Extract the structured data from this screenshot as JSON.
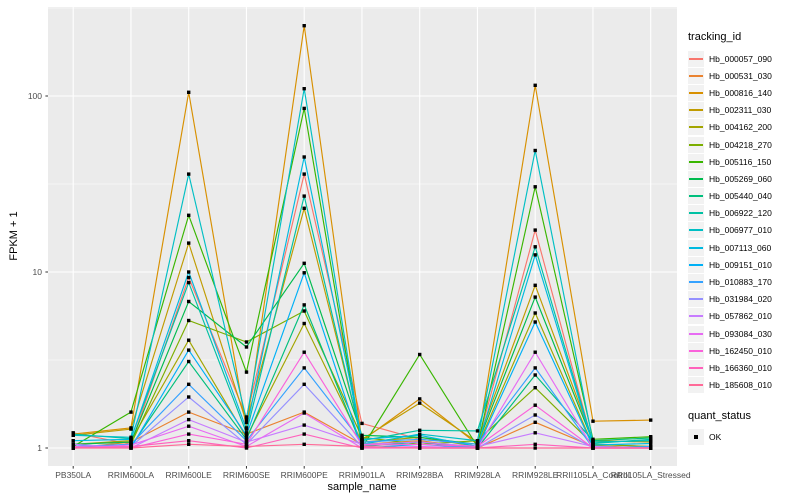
{
  "legend": {
    "tracking_title": "tracking_id",
    "quant_title": "quant_status",
    "quant_label": "OK"
  },
  "chart_data": {
    "type": "line",
    "title": "",
    "xlabel": "sample_name",
    "ylabel": "FPKM + 1",
    "y_scale": "log10",
    "ylim": [
      0.79,
      316
    ],
    "y_ticks": [
      1,
      10,
      100
    ],
    "y_minor": [
      3.162,
      31.62,
      316.2
    ],
    "grid": "on",
    "legend_position": "right",
    "panel_bg": "#EBEBEB",
    "grid_color": "#FFFFFF",
    "tick_label_color": "#4D4D4D",
    "point_color": "#000000",
    "categories": [
      "PB350LA",
      "RRIM600LA",
      "RRIM600LE",
      "RRIM600SE",
      "RRIM600PE",
      "RRIM901LA",
      "RRIM928BA",
      "RRIM928LA",
      "RRIM928LE",
      "RRII105LA_Control",
      "RRII105LA_Stressed"
    ],
    "series": [
      {
        "name": "Hb_000057_090",
        "color": "#F8766D",
        "values": [
          1.22,
          1.05,
          9.3,
          1.5,
          36,
          1.38,
          1.12,
          1.05,
          17.3,
          1.05,
          1.02
        ]
      },
      {
        "name": "Hb_000531_030",
        "color": "#EA8331",
        "values": [
          1.0,
          1.08,
          1.6,
          1.2,
          1.6,
          1.05,
          1.1,
          1.0,
          1.4,
          1.02,
          1.0
        ]
      },
      {
        "name": "Hb_000816_140",
        "color": "#D89000",
        "values": [
          1.2,
          1.3,
          105,
          1.3,
          251,
          1.1,
          1.9,
          1.05,
          115,
          1.42,
          1.44
        ]
      },
      {
        "name": "Hb_002311_030",
        "color": "#C09B00",
        "values": [
          1.18,
          1.28,
          14.6,
          1.4,
          23,
          1.12,
          1.8,
          1.08,
          8.4,
          1.1,
          1.08
        ]
      },
      {
        "name": "Hb_004162_200",
        "color": "#A3A500",
        "values": [
          1.05,
          1.1,
          4.1,
          1.15,
          5.1,
          1.08,
          1.15,
          1.02,
          5.85,
          1.03,
          1.0
        ]
      },
      {
        "name": "Hb_004218_270",
        "color": "#7CAE00",
        "values": [
          1.0,
          1.05,
          5.3,
          4.0,
          6.0,
          1.15,
          1.05,
          1.1,
          2.2,
          1.05,
          1.02
        ]
      },
      {
        "name": "Hb_005116_150",
        "color": "#39B600",
        "values": [
          1.02,
          1.6,
          21,
          2.7,
          85,
          1.0,
          3.4,
          1.02,
          30.5,
          1.12,
          1.16
        ]
      },
      {
        "name": "Hb_005269_060",
        "color": "#00BB4E",
        "values": [
          1.05,
          1.08,
          6.8,
          3.75,
          11.2,
          1.18,
          1.15,
          1.05,
          7.2,
          1.08,
          1.1
        ]
      },
      {
        "name": "Hb_005440_040",
        "color": "#00BF7D",
        "values": [
          1.0,
          1.02,
          3.1,
          1.12,
          6.5,
          1.02,
          1.08,
          1.0,
          2.6,
          1.1,
          1.14
        ]
      },
      {
        "name": "Hb_006922_120",
        "color": "#00C1A3",
        "values": [
          1.2,
          1.13,
          8.7,
          1.22,
          27,
          1.1,
          1.26,
          1.25,
          13.9,
          1.06,
          1.12
        ]
      },
      {
        "name": "Hb_006977_010",
        "color": "#00BFC4",
        "values": [
          1.18,
          1.15,
          36,
          1.45,
          110,
          1.05,
          1.2,
          1.1,
          49,
          1.08,
          1.1
        ]
      },
      {
        "name": "Hb_007113_060",
        "color": "#00BAE0",
        "values": [
          1.1,
          1.12,
          10,
          1.28,
          45,
          1.12,
          1.18,
          1.02,
          12.5,
          1.04,
          1.06
        ]
      },
      {
        "name": "Hb_009151_010",
        "color": "#00B0F6",
        "values": [
          1.05,
          1.0,
          3.6,
          1.18,
          9.9,
          1.0,
          1.05,
          1.0,
          5.2,
          1.02,
          1.0
        ]
      },
      {
        "name": "Hb_010883_170",
        "color": "#35A2FF",
        "values": [
          1.02,
          1.05,
          2.3,
          1.1,
          2.85,
          1.08,
          1.12,
          1.05,
          2.85,
          1.0,
          1.02
        ]
      },
      {
        "name": "Hb_031984_020",
        "color": "#9590FF",
        "values": [
          1.0,
          1.02,
          1.95,
          1.05,
          2.3,
          1.02,
          1.0,
          1.0,
          1.54,
          1.0,
          1.0
        ]
      },
      {
        "name": "Hb_057862_010",
        "color": "#C77CFF",
        "values": [
          1.05,
          1.0,
          1.45,
          1.08,
          1.35,
          1.05,
          1.08,
          1.02,
          1.22,
          1.02,
          1.0
        ]
      },
      {
        "name": "Hb_093084_030",
        "color": "#E76BF3",
        "values": [
          1.0,
          1.04,
          1.33,
          1.02,
          1.58,
          1.0,
          1.02,
          1.0,
          3.5,
          1.0,
          1.0
        ]
      },
      {
        "name": "Hb_162450_010",
        "color": "#FA62DB",
        "values": [
          1.02,
          1.0,
          1.2,
          1.05,
          3.5,
          1.04,
          1.05,
          1.02,
          1.75,
          1.0,
          1.0
        ]
      },
      {
        "name": "Hb_166360_010",
        "color": "#FF62BC",
        "values": [
          1.0,
          1.02,
          1.1,
          1.0,
          1.2,
          1.0,
          1.0,
          1.0,
          1.05,
          1.0,
          1.0
        ]
      },
      {
        "name": "Hb_185608_010",
        "color": "#FF6A98",
        "values": [
          1.0,
          1.0,
          1.05,
          1.02,
          1.05,
          1.02,
          1.0,
          1.0,
          1.0,
          1.0,
          1.0
        ]
      }
    ]
  }
}
